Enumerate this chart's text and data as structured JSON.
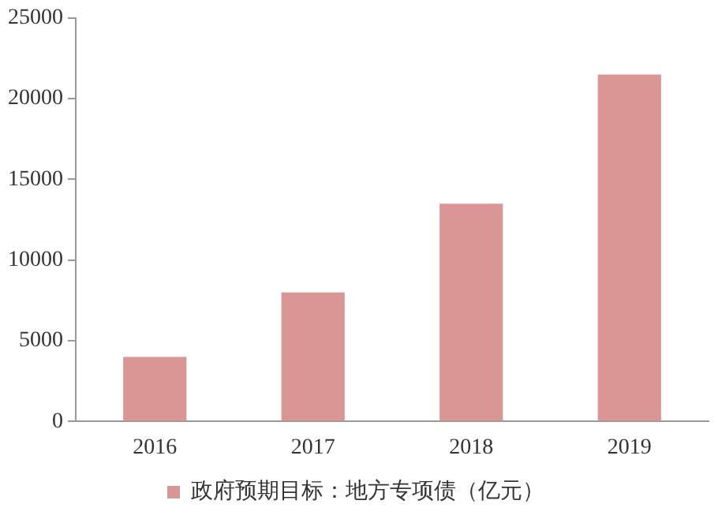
{
  "chart_data": {
    "type": "bar",
    "categories": [
      "2016",
      "2017",
      "2018",
      "2019"
    ],
    "series": [
      {
        "name": "政府预期目标：地方专项债（亿元）",
        "color": "#d99694",
        "values": [
          4000,
          8000,
          13500,
          21500
        ]
      }
    ],
    "ylim": [
      0,
      25000
    ],
    "yticks": [
      0,
      5000,
      10000,
      15000,
      20000,
      25000
    ],
    "grid": false,
    "legend": "bottom"
  }
}
